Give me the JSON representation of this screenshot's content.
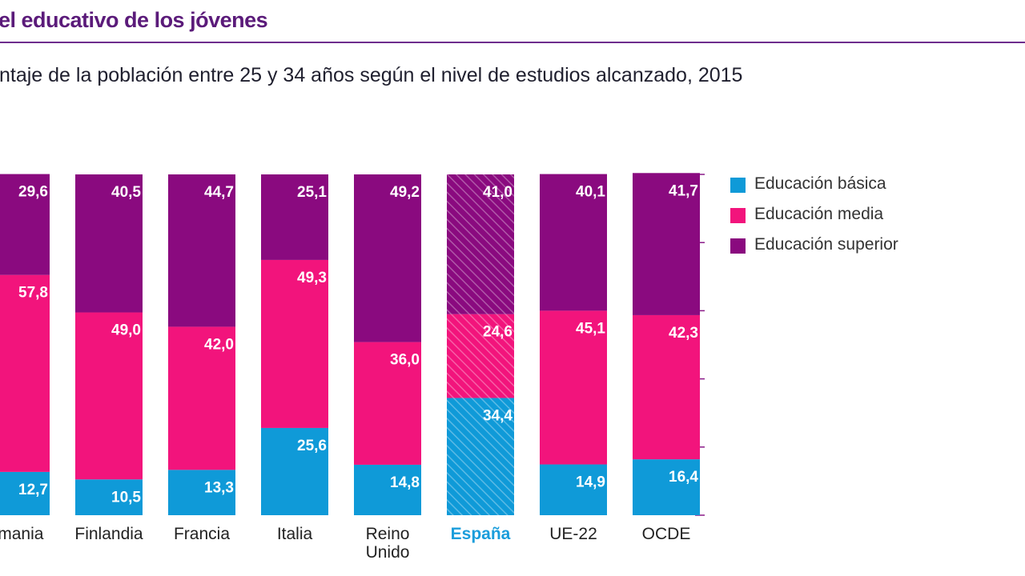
{
  "header": {
    "title": "el educativo de los jóvenes",
    "subtitle": "ntaje de la población entre 25 y 34 años según el nivel de estudios alcanzado, 2015"
  },
  "colors": {
    "basica": "#0f9ad8",
    "media": "#f2147c",
    "superior": "#8a0a7f",
    "highlight_label": "#1a9ddb",
    "axis_tick": "#8a1a88",
    "category_label": "#222222"
  },
  "chart_data": {
    "type": "bar",
    "stacked": true,
    "categories": [
      "emania",
      "Finlandia",
      "Francia",
      "Italia",
      "Reino Unido",
      "España",
      "UE-22",
      "OCDE"
    ],
    "highlight_category": "España",
    "series": [
      {
        "key": "basica",
        "name": "Educación básica",
        "values": [
          12.7,
          10.5,
          13.3,
          25.6,
          14.8,
          34.4,
          14.9,
          16.4
        ],
        "labels": [
          "12,7",
          "10,5",
          "13,3",
          "25,6",
          "14,8",
          "34,4",
          "14,9",
          "16,4"
        ]
      },
      {
        "key": "media",
        "name": "Educación media",
        "values": [
          57.8,
          49.0,
          42.0,
          49.3,
          36.0,
          24.6,
          45.1,
          42.3
        ],
        "labels": [
          "57,8",
          "49,0",
          "42,0",
          "49,3",
          "36,0",
          "24,6",
          "45,1",
          "42,3"
        ]
      },
      {
        "key": "superior",
        "name": "Educación superior",
        "values": [
          29.6,
          40.5,
          44.7,
          25.1,
          49.2,
          41.0,
          40.1,
          41.7
        ],
        "labels": [
          "29,6",
          "40,5",
          "44,7",
          "25,1",
          "49,2",
          "41,0",
          "40,1",
          "41,7"
        ]
      }
    ],
    "ylim": [
      0,
      100
    ],
    "legend_position": "right"
  }
}
